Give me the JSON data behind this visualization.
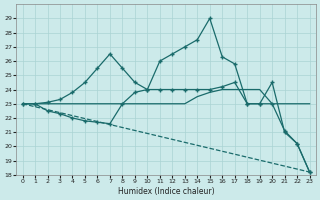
{
  "bg_color": "#cceaea",
  "line_color": "#1a6b6b",
  "grid_color": "#aad4d4",
  "xlabel": "Humidex (Indice chaleur)",
  "ylim": [
    18,
    30
  ],
  "xlim": [
    -0.5,
    23.5
  ],
  "yticks": [
    18,
    19,
    20,
    21,
    22,
    23,
    24,
    25,
    26,
    27,
    28,
    29
  ],
  "xticks": [
    0,
    1,
    2,
    3,
    4,
    5,
    6,
    7,
    8,
    9,
    10,
    11,
    12,
    13,
    14,
    15,
    16,
    17,
    18,
    19,
    20,
    21,
    22,
    23
  ],
  "series": [
    {
      "x": [
        0,
        23
      ],
      "y": [
        23.0,
        18.2
      ],
      "marker": null,
      "linestyle": "--",
      "linewidth": 0.9
    },
    {
      "x": [
        0,
        1,
        2,
        3,
        4,
        5,
        6,
        7,
        8,
        9,
        10,
        11,
        12,
        13,
        14,
        15,
        16,
        17,
        18,
        19,
        20,
        21,
        22,
        23
      ],
      "y": [
        23,
        23,
        23,
        23,
        23,
        23,
        23,
        23,
        23,
        23,
        23,
        23,
        23,
        23,
        23.5,
        23.8,
        24,
        24,
        24,
        24,
        23,
        23,
        23,
        23
      ],
      "marker": null,
      "linestyle": "-",
      "linewidth": 0.9
    },
    {
      "x": [
        0,
        1,
        2,
        3,
        4,
        5,
        6,
        7,
        8,
        9,
        10,
        11,
        12,
        13,
        14,
        15,
        16,
        17,
        18,
        19,
        20,
        21,
        22,
        23
      ],
      "y": [
        23,
        23,
        23.1,
        23.3,
        23.8,
        24.5,
        25.5,
        26.5,
        25.5,
        24.5,
        24.0,
        26.0,
        26.5,
        27.0,
        27.5,
        29.0,
        26.3,
        25.8,
        23.0,
        23.0,
        23.0,
        21.1,
        20.2,
        18.2
      ],
      "marker": "+",
      "linestyle": "-",
      "linewidth": 0.9
    },
    {
      "x": [
        0,
        1,
        2,
        3,
        4,
        5,
        6,
        7,
        8,
        9,
        10,
        11,
        12,
        13,
        14,
        15,
        16,
        17,
        18,
        19,
        20,
        21,
        22,
        23
      ],
      "y": [
        23,
        23,
        22.5,
        22.3,
        22.0,
        21.8,
        21.7,
        21.6,
        23.0,
        23.8,
        24.0,
        24.0,
        24.0,
        24.0,
        24.0,
        24.0,
        24.2,
        24.5,
        23.0,
        23.0,
        24.5,
        21.0,
        20.2,
        18.2
      ],
      "marker": "+",
      "linestyle": "-",
      "linewidth": 0.9
    }
  ]
}
